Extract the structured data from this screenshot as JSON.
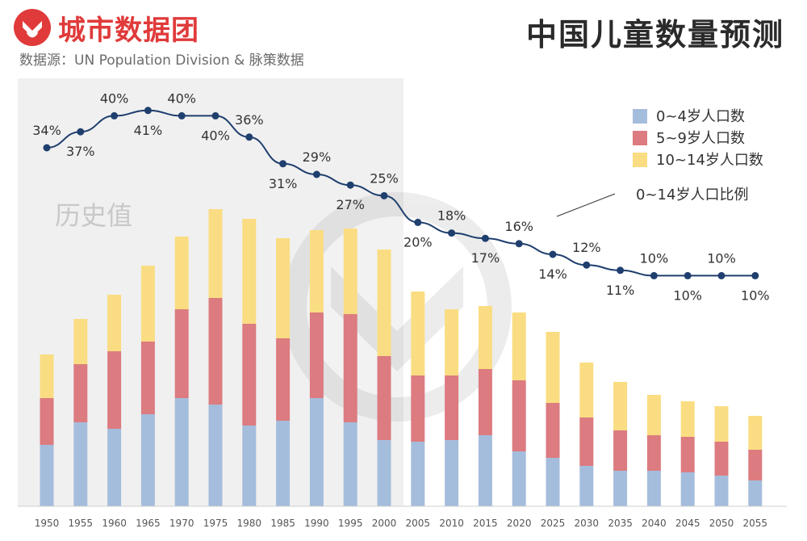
{
  "header": {
    "brand": "城市数据团",
    "source": "数据源：UN Population Division & 脉策数据",
    "title": "中国儿童数量预测"
  },
  "annotations": {
    "historical_region_label": "历史值",
    "line_callout": "0~14岁人口比例"
  },
  "colors": {
    "age_0_4": "#a5bddc",
    "age_5_9": "#dc7b80",
    "age_10_14": "#fadd82",
    "line": "#1f3f6e",
    "historical_shade": "#f0f0f0",
    "brand": "#e03a3a"
  },
  "chart_data": {
    "type": "bar",
    "stacked": true,
    "categories": [
      "1950",
      "1955",
      "1960",
      "1965",
      "1970",
      "1975",
      "1980",
      "1985",
      "1990",
      "1995",
      "2000",
      "2005",
      "2010",
      "2015",
      "2020",
      "2025",
      "2030",
      "2035",
      "2040",
      "2045",
      "2050",
      "2055"
    ],
    "series": [
      {
        "name": "0~4岁人口数",
        "values": [
          38,
          52,
          48,
          57,
          67,
          63,
          50,
          53,
          67,
          52,
          41,
          40,
          41,
          44,
          34,
          30,
          25,
          22,
          22,
          21,
          19,
          16
        ]
      },
      {
        "name": "5~9岁人口数",
        "values": [
          29,
          36,
          48,
          45,
          55,
          66,
          63,
          51,
          53,
          67,
          52,
          41,
          40,
          41,
          44,
          34,
          30,
          25,
          22,
          22,
          21,
          19
        ]
      },
      {
        "name": "10~14岁人口数",
        "values": [
          27,
          28,
          35,
          47,
          45,
          55,
          65,
          62,
          51,
          53,
          66,
          52,
          41,
          39,
          42,
          44,
          34,
          30,
          25,
          22,
          22,
          21
        ]
      }
    ],
    "line_series": {
      "name": "0~14岁人口比例",
      "unit": "%",
      "values": [
        34,
        37,
        40,
        41,
        40,
        40,
        36,
        31,
        29,
        27,
        25,
        20,
        18,
        17,
        16,
        14,
        12,
        11,
        10,
        10,
        10,
        10
      ],
      "labels": [
        "34%",
        "37%",
        "40%",
        "41%",
        "40%",
        "40%",
        "36%",
        "31%",
        "29%",
        "27%",
        "25%",
        "20%",
        "18%",
        "17%",
        "16%",
        "14%",
        "12%",
        "11%",
        "10%",
        "10%",
        "10%",
        "10%"
      ],
      "label_side": [
        "above",
        "below",
        "above",
        "below",
        "above",
        "below",
        "above",
        "below",
        "above",
        "below",
        "above",
        "below",
        "above",
        "below",
        "above",
        "below",
        "above",
        "below",
        "above",
        "below",
        "above",
        "below"
      ]
    },
    "historical_range": [
      "1950",
      "2000"
    ],
    "xlabel": "",
    "ylabel": "",
    "grid": false,
    "legend_position": "top-right"
  }
}
